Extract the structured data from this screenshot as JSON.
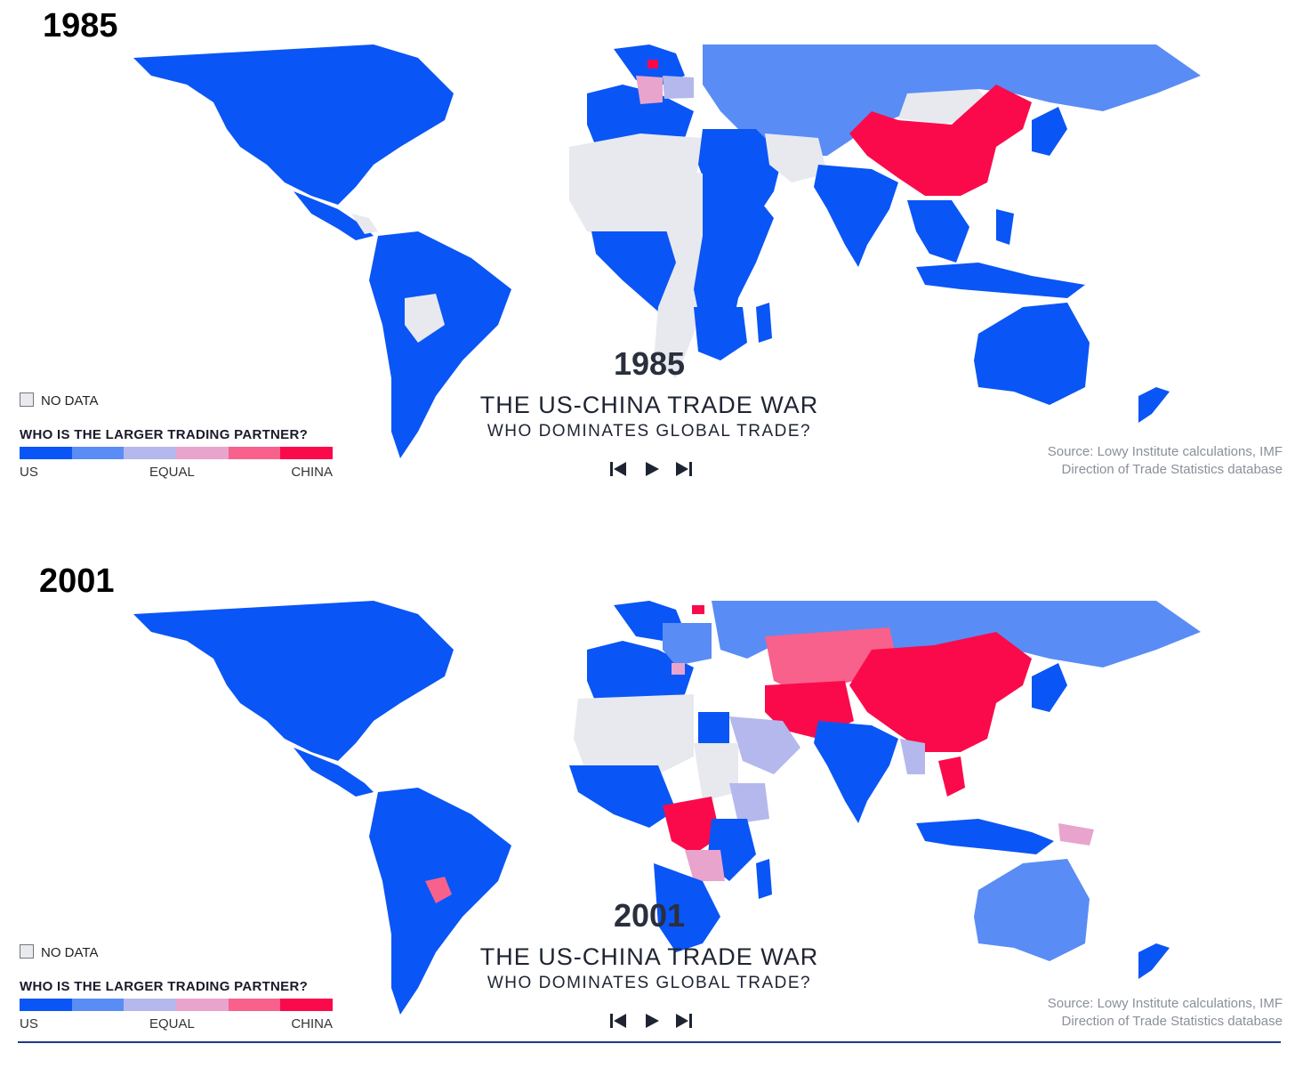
{
  "colors": {
    "us_strong": "#0a55f5",
    "us_mid": "#5a8cf5",
    "us_light": "#b4b8ec",
    "china_light": "#e8a4cc",
    "china_mid": "#f7618c",
    "china_strong": "#fa0a4b",
    "no_data": "#e7e9ef"
  },
  "panels": [
    {
      "heading": "1985",
      "map_year": "1985",
      "title": "THE US-CHINA TRADE WAR",
      "subtitle": "WHO DOMINATES GLOBAL TRADE?",
      "legend": {
        "no_data_label": "NO DATA",
        "title": "WHO IS THE LARGER TRADING PARTNER?",
        "scale_labels": [
          "US",
          "EQUAL",
          "CHINA"
        ]
      },
      "source": [
        "Source: Lowy Institute calculations, IMF",
        "Direction of Trade Statistics database"
      ],
      "controls": [
        "skip-back-icon",
        "play-icon",
        "skip-forward-icon"
      ]
    },
    {
      "heading": "2001",
      "map_year": "2001",
      "title": "THE US-CHINA TRADE WAR",
      "subtitle": "WHO DOMINATES GLOBAL TRADE?",
      "legend": {
        "no_data_label": "NO DATA",
        "title": "WHO IS THE LARGER TRADING PARTNER?",
        "scale_labels": [
          "US",
          "EQUAL",
          "CHINA"
        ]
      },
      "source": [
        "Source: Lowy Institute calculations, IMF",
        "Direction of Trade Statistics database"
      ],
      "controls": [
        "skip-back-icon",
        "play-icon",
        "skip-forward-icon"
      ]
    }
  ]
}
